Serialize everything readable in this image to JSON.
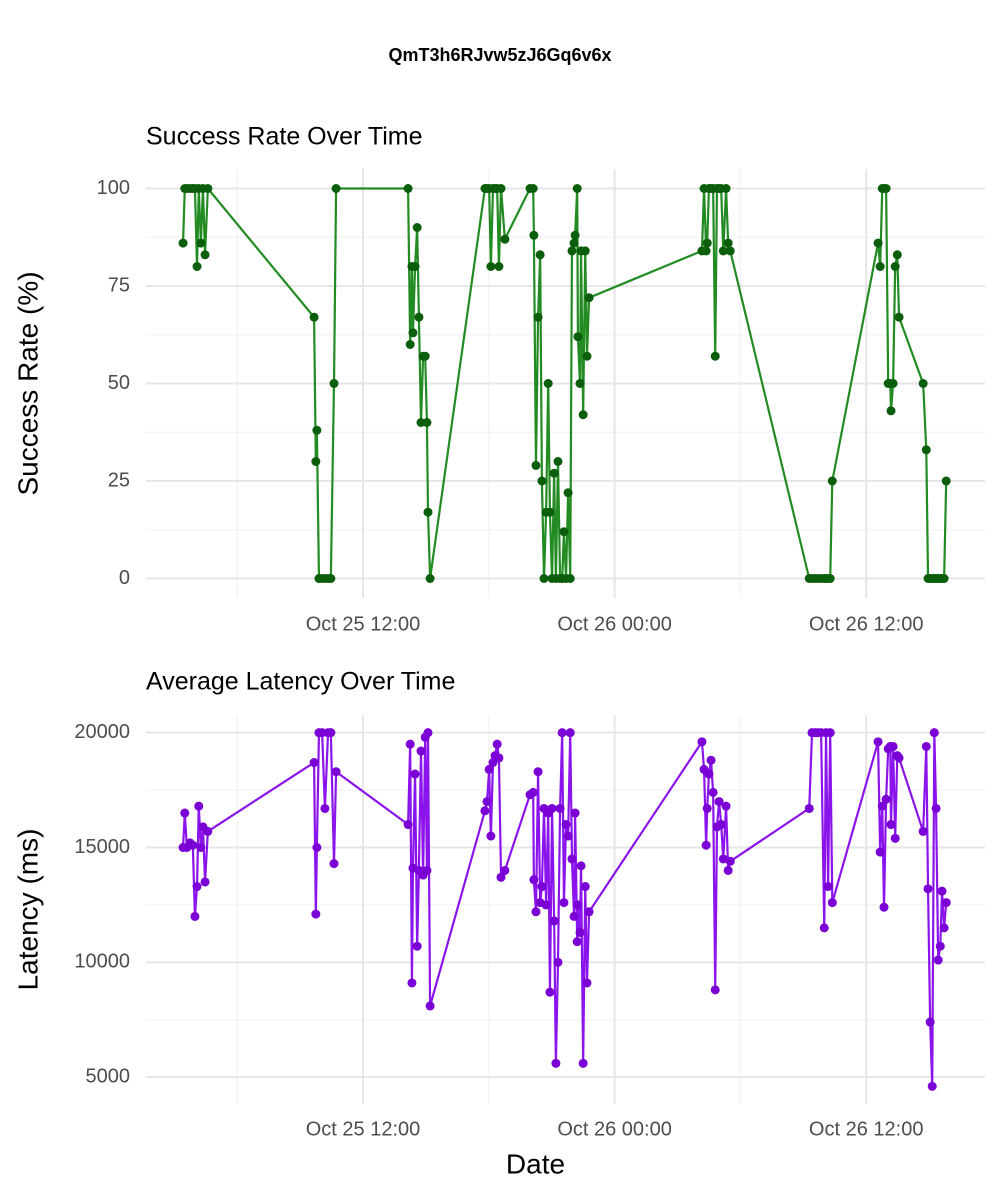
{
  "title": "QmT3h6RJvw5zJ6Gq6v6x",
  "chart_data": [
    {
      "type": "line",
      "title": "Success Rate Over Time",
      "y_label": "Success Rate (%)",
      "color": "#228b22",
      "point_color": "#0b5e0b",
      "grid": true,
      "xlim": [
        "Oct 25 01:39",
        "Oct 26 17:40"
      ],
      "xticks": [
        "Oct 25 12:00",
        "Oct 26 00:00",
        "Oct 26 12:00"
      ],
      "ylim": [
        -5,
        105
      ],
      "yticks": [
        0,
        25,
        50,
        75,
        100
      ],
      "x": [
        "Oct 25 03:25",
        "Oct 25 03:30",
        "Oct 25 03:36",
        "Oct 25 03:45",
        "Oct 25 03:53",
        "Oct 25 03:59",
        "Oct 25 04:05",
        "Oct 25 04:10",
        "Oct 25 04:16",
        "Oct 25 04:22",
        "Oct 25 04:28",
        "Oct 25 04:36",
        "Oct 25 09:40",
        "Oct 25 09:45",
        "Oct 25 09:48",
        "Oct 25 09:54",
        "Oct 25 10:03",
        "Oct 25 10:11",
        "Oct 25 10:20",
        "Oct 25 10:28",
        "Oct 25 10:37",
        "Oct 25 10:43",
        "Oct 25 14:09",
        "Oct 25 14:15",
        "Oct 25 14:20",
        "Oct 25 14:23",
        "Oct 25 14:29",
        "Oct 25 14:35",
        "Oct 25 14:40",
        "Oct 25 14:46",
        "Oct 25 14:52",
        "Oct 25 14:58",
        "Oct 25 15:03",
        "Oct 25 15:06",
        "Oct 25 15:12",
        "Oct 25 17:49",
        "Oct 25 17:55",
        "Oct 25 18:01",
        "Oct 25 18:06",
        "Oct 25 18:12",
        "Oct 25 18:18",
        "Oct 25 18:24",
        "Oct 25 18:29",
        "Oct 25 18:35",
        "Oct 25 18:46",
        "Oct 25 19:58",
        "Oct 25 20:07",
        "Oct 25 20:09",
        "Oct 25 20:15",
        "Oct 25 20:21",
        "Oct 25 20:27",
        "Oct 25 20:32",
        "Oct 25 20:38",
        "Oct 25 20:44",
        "Oct 25 20:50",
        "Oct 25 20:55",
        "Oct 25 21:01",
        "Oct 25 21:07",
        "Oct 25 21:12",
        "Oct 25 21:18",
        "Oct 25 21:24",
        "Oct 25 21:30",
        "Oct 25 21:35",
        "Oct 25 21:41",
        "Oct 25 21:47",
        "Oct 25 21:53",
        "Oct 25 21:58",
        "Oct 25 22:04",
        "Oct 25 22:07",
        "Oct 25 22:13",
        "Oct 25 22:15",
        "Oct 25 22:21",
        "Oct 25 22:24",
        "Oct 25 22:30",
        "Oct 25 22:36",
        "Oct 25 22:41",
        "Oct 25 22:47",
        "Oct 26 04:10",
        "Oct 26 04:16",
        "Oct 26 04:22",
        "Oct 26 04:25",
        "Oct 26 04:30",
        "Oct 26 04:36",
        "Oct 26 04:42",
        "Oct 26 04:48",
        "Oct 26 04:53",
        "Oct 26 04:59",
        "Oct 26 05:05",
        "Oct 26 05:11",
        "Oct 26 05:19",
        "Oct 26 05:25",
        "Oct 26 05:31",
        "Oct 26 09:17",
        "Oct 26 09:25",
        "Oct 26 09:34",
        "Oct 26 09:42",
        "Oct 26 09:51",
        "Oct 26 10:00",
        "Oct 26 10:05",
        "Oct 26 10:11",
        "Oct 26 10:17",
        "Oct 26 10:23",
        "Oct 26 12:34",
        "Oct 26 12:40",
        "Oct 26 12:46",
        "Oct 26 12:51",
        "Oct 26 12:57",
        "Oct 26 13:03",
        "Oct 26 13:09",
        "Oct 26 13:11",
        "Oct 26 13:17",
        "Oct 26 13:23",
        "Oct 26 13:29",
        "Oct 26 13:34",
        "Oct 26 14:43",
        "Oct 26 14:52",
        "Oct 26 14:57",
        "Oct 26 15:03",
        "Oct 26 15:09",
        "Oct 26 15:15",
        "Oct 26 15:20",
        "Oct 26 15:26",
        "Oct 26 15:32",
        "Oct 26 15:37",
        "Oct 26 15:43",
        "Oct 26 15:49"
      ],
      "values": [
        86,
        100,
        100,
        100,
        100,
        100,
        80,
        100,
        86,
        100,
        83,
        100,
        67,
        30,
        38,
        0,
        0,
        0,
        0,
        0,
        50,
        100,
        100,
        60,
        80,
        63,
        80,
        90,
        67,
        40,
        57,
        57,
        40,
        17,
        0,
        100,
        100,
        100,
        80,
        100,
        100,
        100,
        80,
        100,
        87,
        100,
        100,
        88,
        29,
        67,
        83,
        25,
        0,
        17,
        50,
        17,
        0,
        27,
        0,
        30,
        0,
        0,
        12,
        0,
        22,
        0,
        84,
        86,
        88,
        100,
        62,
        50,
        84,
        42,
        84,
        57,
        72,
        84,
        100,
        84,
        86,
        100,
        100,
        100,
        57,
        100,
        100,
        100,
        84,
        100,
        86,
        84,
        0,
        0,
        0,
        0,
        0,
        0,
        0,
        0,
        0,
        25,
        86,
        80,
        100,
        100,
        100,
        50,
        50,
        43,
        50,
        80,
        83,
        67,
        50,
        33,
        0,
        0,
        0,
        0,
        0,
        0,
        0,
        0,
        0,
        25
      ]
    },
    {
      "type": "line",
      "title": "Average Latency Over Time",
      "y_label": "Latency (ms)",
      "x_label": "Date",
      "color": "#8b14ec",
      "point_color": "#7a00d6",
      "grid": true,
      "xlim": [
        "Oct 25 01:39",
        "Oct 26 17:40"
      ],
      "xticks": [
        "Oct 25 12:00",
        "Oct 26 00:00",
        "Oct 26 12:00"
      ],
      "ylim": [
        3830,
        20770
      ],
      "yticks": [
        5000,
        10000,
        15000,
        20000
      ],
      "x": [
        "Oct 25 03:25",
        "Oct 25 03:30",
        "Oct 25 03:36",
        "Oct 25 03:45",
        "Oct 25 03:53",
        "Oct 25 03:59",
        "Oct 25 04:05",
        "Oct 25 04:10",
        "Oct 25 04:16",
        "Oct 25 04:22",
        "Oct 25 04:28",
        "Oct 25 04:36",
        "Oct 25 09:40",
        "Oct 25 09:45",
        "Oct 25 09:48",
        "Oct 25 09:54",
        "Oct 25 10:03",
        "Oct 25 10:11",
        "Oct 25 10:20",
        "Oct 25 10:28",
        "Oct 25 10:37",
        "Oct 25 10:43",
        "Oct 25 14:09",
        "Oct 25 14:15",
        "Oct 25 14:20",
        "Oct 25 14:23",
        "Oct 25 14:29",
        "Oct 25 14:35",
        "Oct 25 14:40",
        "Oct 25 14:46",
        "Oct 25 14:52",
        "Oct 25 14:58",
        "Oct 25 15:03",
        "Oct 25 15:06",
        "Oct 25 15:12",
        "Oct 25 17:49",
        "Oct 25 17:55",
        "Oct 25 18:01",
        "Oct 25 18:06",
        "Oct 25 18:12",
        "Oct 25 18:18",
        "Oct 25 18:24",
        "Oct 25 18:29",
        "Oct 25 18:35",
        "Oct 25 18:46",
        "Oct 25 19:58",
        "Oct 25 20:07",
        "Oct 25 20:09",
        "Oct 25 20:15",
        "Oct 25 20:21",
        "Oct 25 20:27",
        "Oct 25 20:32",
        "Oct 25 20:38",
        "Oct 25 20:44",
        "Oct 25 20:50",
        "Oct 25 20:55",
        "Oct 25 21:01",
        "Oct 25 21:07",
        "Oct 25 21:12",
        "Oct 25 21:18",
        "Oct 25 21:24",
        "Oct 25 21:30",
        "Oct 25 21:35",
        "Oct 25 21:41",
        "Oct 25 21:47",
        "Oct 25 21:53",
        "Oct 25 21:58",
        "Oct 25 22:04",
        "Oct 25 22:07",
        "Oct 25 22:13",
        "Oct 25 22:15",
        "Oct 25 22:21",
        "Oct 25 22:24",
        "Oct 25 22:30",
        "Oct 25 22:36",
        "Oct 25 22:41",
        "Oct 25 22:47",
        "Oct 26 04:10",
        "Oct 26 04:16",
        "Oct 26 04:22",
        "Oct 26 04:25",
        "Oct 26 04:30",
        "Oct 26 04:36",
        "Oct 26 04:42",
        "Oct 26 04:48",
        "Oct 26 04:53",
        "Oct 26 04:59",
        "Oct 26 05:05",
        "Oct 26 05:11",
        "Oct 26 05:19",
        "Oct 26 05:25",
        "Oct 26 05:31",
        "Oct 26 09:17",
        "Oct 26 09:25",
        "Oct 26 09:34",
        "Oct 26 09:42",
        "Oct 26 09:51",
        "Oct 26 10:00",
        "Oct 26 10:05",
        "Oct 26 10:11",
        "Oct 26 10:17",
        "Oct 26 10:23",
        "Oct 26 12:34",
        "Oct 26 12:40",
        "Oct 26 12:46",
        "Oct 26 12:51",
        "Oct 26 12:57",
        "Oct 26 13:03",
        "Oct 26 13:09",
        "Oct 26 13:11",
        "Oct 26 13:17",
        "Oct 26 13:23",
        "Oct 26 13:29",
        "Oct 26 13:34",
        "Oct 26 14:43",
        "Oct 26 14:52",
        "Oct 26 14:57",
        "Oct 26 15:03",
        "Oct 26 15:09",
        "Oct 26 15:15",
        "Oct 26 15:20",
        "Oct 26 15:26",
        "Oct 26 15:32",
        "Oct 26 15:37",
        "Oct 26 15:43",
        "Oct 26 15:49"
      ],
      "values": [
        15000,
        16500,
        15000,
        15200,
        15100,
        12000,
        13300,
        16800,
        15000,
        15900,
        13500,
        15700,
        18700,
        12100,
        15000,
        20000,
        20000,
        16700,
        20000,
        20000,
        14300,
        18300,
        16000,
        19500,
        9100,
        14100,
        18200,
        10700,
        14000,
        19200,
        13800,
        19800,
        14000,
        20000,
        8100,
        16600,
        17000,
        18400,
        15500,
        18700,
        19000,
        19500,
        18900,
        13700,
        14000,
        17300,
        17400,
        13600,
        12200,
        18300,
        12600,
        13300,
        16700,
        12500,
        16500,
        8700,
        16700,
        11800,
        5600,
        10000,
        16700,
        20000,
        12600,
        16000,
        15500,
        20000,
        14500,
        12000,
        16500,
        10900,
        12500,
        11300,
        14200,
        5600,
        13300,
        9100,
        12200,
        19600,
        18400,
        15100,
        16700,
        18200,
        18800,
        17400,
        8800,
        15900,
        17000,
        16000,
        14500,
        16800,
        14000,
        14400,
        16700,
        20000,
        20000,
        20000,
        20000,
        11500,
        20000,
        13300,
        20000,
        12600,
        19600,
        14800,
        16800,
        12400,
        17100,
        19300,
        19400,
        16000,
        19400,
        15400,
        19000,
        18900,
        15700,
        19400,
        13200,
        7400,
        4600,
        20000,
        16700,
        10100,
        10700,
        13100,
        11500,
        12600
      ]
    }
  ]
}
